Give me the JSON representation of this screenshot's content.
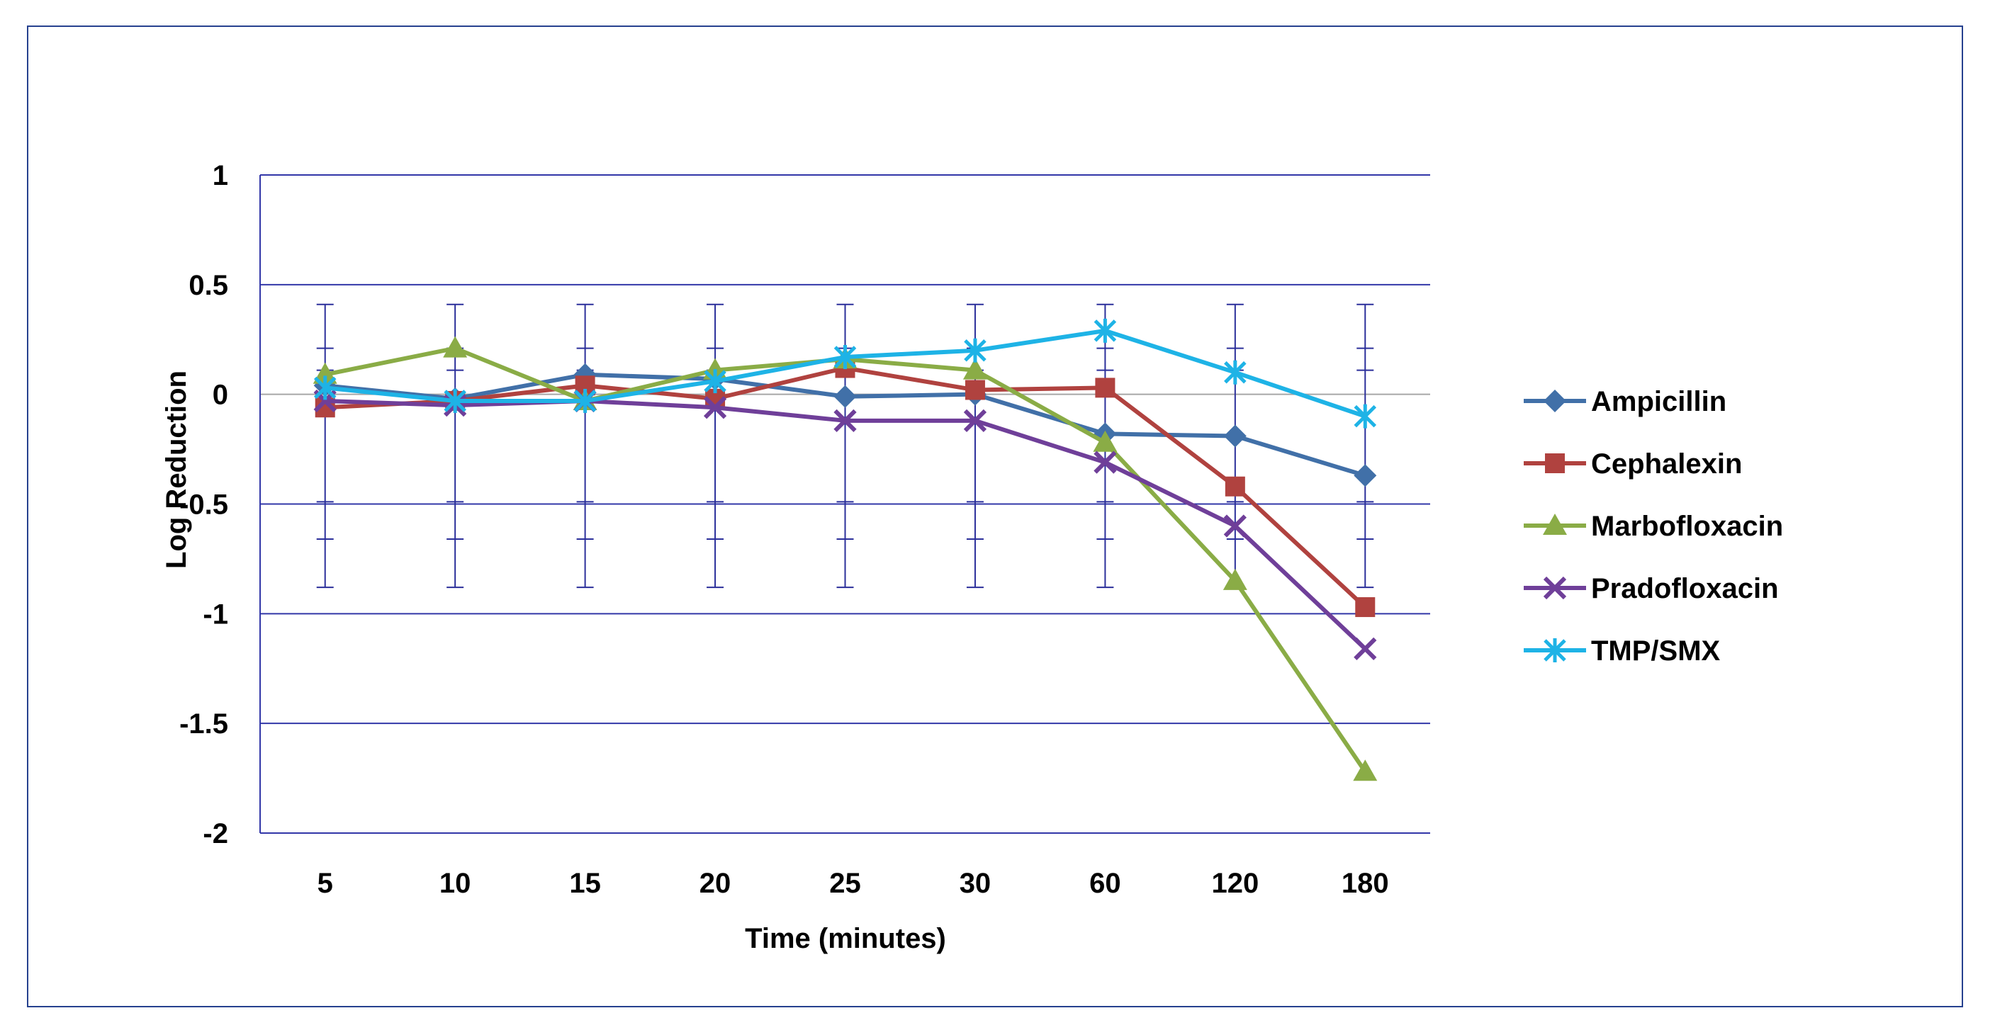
{
  "chart_data": {
    "type": "line",
    "title": "",
    "xlabel": "Time (minutes)",
    "ylabel": "Log Reduction",
    "categories": [
      "5",
      "10",
      "15",
      "20",
      "25",
      "30",
      "60",
      "120",
      "180"
    ],
    "ylim": [
      -2,
      1
    ],
    "yticks": [
      1,
      0.5,
      0,
      -0.5,
      -1,
      -1.5,
      -2
    ],
    "ytick_labels": [
      "1",
      "0.5",
      "0",
      "-0.5",
      "-1",
      "-1.5",
      "-2"
    ],
    "grid": true,
    "legend_position": "right",
    "error_bars": {
      "outer": [
        -0.88,
        0.41
      ],
      "inner": [
        -0.66,
        0.21
      ],
      "mid": [
        -0.49,
        0.11
      ]
    },
    "series": [
      {
        "name": "Ampicillin",
        "color": "#4170a8",
        "marker": "diamond",
        "values": [
          0.04,
          -0.02,
          0.09,
          0.07,
          -0.01,
          0.0,
          -0.18,
          -0.19,
          -0.37
        ]
      },
      {
        "name": "Cephalexin",
        "color": "#b0423f",
        "marker": "square",
        "values": [
          -0.06,
          -0.03,
          0.04,
          -0.02,
          0.12,
          0.02,
          0.03,
          -0.42,
          -0.97
        ]
      },
      {
        "name": "Marbofloxacin",
        "color": "#8aac46",
        "marker": "triangle",
        "values": [
          0.09,
          0.21,
          -0.03,
          0.11,
          0.16,
          0.11,
          -0.22,
          -0.85,
          -1.72
        ]
      },
      {
        "name": "Pradofloxacin",
        "color": "#6f3f99",
        "marker": "x",
        "values": [
          -0.03,
          -0.05,
          -0.03,
          -0.06,
          -0.12,
          -0.12,
          -0.31,
          -0.6,
          -1.16
        ]
      },
      {
        "name": "TMP/SMX",
        "color": "#1eb3e6",
        "marker": "star",
        "values": [
          0.03,
          -0.03,
          -0.03,
          0.06,
          0.17,
          0.2,
          0.29,
          0.1,
          -0.1
        ]
      }
    ]
  }
}
